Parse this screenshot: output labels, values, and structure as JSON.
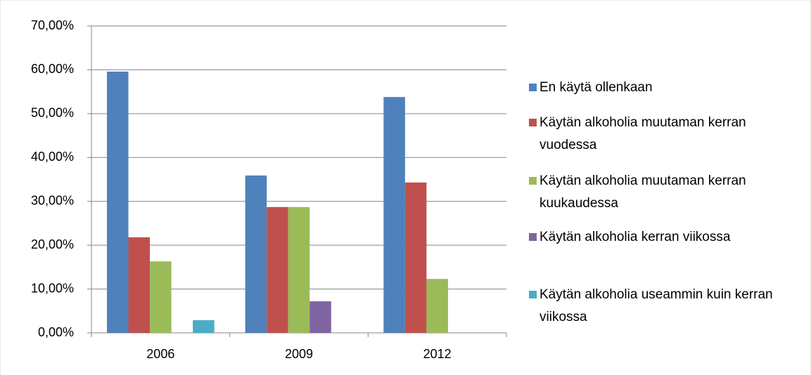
{
  "chart_data": {
    "type": "bar",
    "categories": [
      "2006",
      "2009",
      "2012"
    ],
    "series": [
      {
        "name": "En käytä ollenkaan",
        "color": "#4f81bd",
        "values": [
          59.6,
          35.9,
          53.8
        ]
      },
      {
        "name": "Käytän alkoholia muutaman kerran vuodessa",
        "color": "#c0504d",
        "values": [
          21.8,
          28.7,
          34.3
        ]
      },
      {
        "name": "Käytän alkoholia muutaman kerran kuukaudessa",
        "color": "#9bbb59",
        "values": [
          16.3,
          28.7,
          12.3
        ]
      },
      {
        "name": "Käytän alkoholia kerran viikossa",
        "color": "#8064a2",
        "values": [
          0,
          7.2,
          0
        ]
      },
      {
        "name": "Käytän alkoholia useammin kuin kerran viikossa",
        "color": "#4bacc6",
        "values": [
          2.9,
          0,
          0
        ]
      }
    ],
    "ylim": [
      0,
      70
    ],
    "yticks": [
      {
        "value": 0,
        "label": "0,00%"
      },
      {
        "value": 10,
        "label": "10,00%"
      },
      {
        "value": 20,
        "label": "20,00%"
      },
      {
        "value": 30,
        "label": "30,00%"
      },
      {
        "value": 40,
        "label": "40,00%"
      },
      {
        "value": 50,
        "label": "50,00%"
      },
      {
        "value": 60,
        "label": "60,00%"
      },
      {
        "value": 70,
        "label": "70,00%"
      }
    ],
    "grid": true,
    "legend": "right"
  }
}
